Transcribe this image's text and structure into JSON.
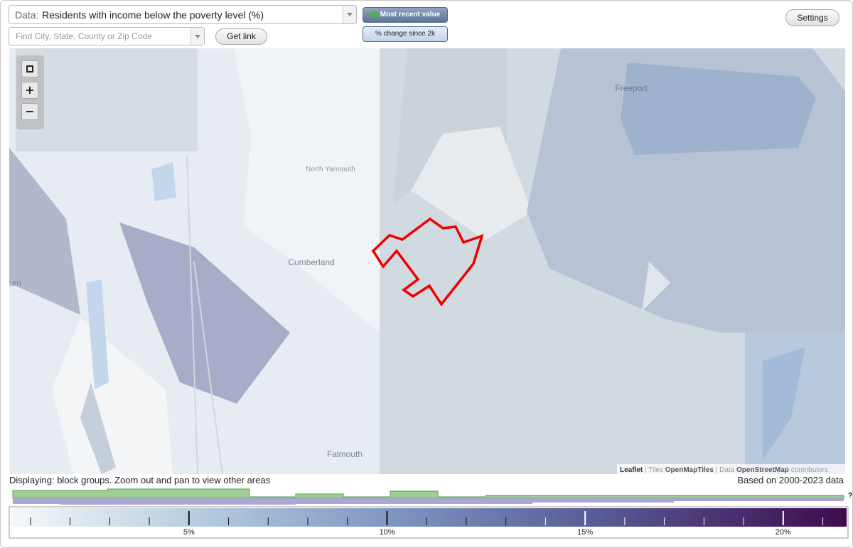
{
  "controls": {
    "data_label": "Data:",
    "data_value": "Residents with income below the poverty level (%)",
    "search_placeholder": "Find City, State, County or Zip Code",
    "get_link": "Get link",
    "most_recent": "Most recent value",
    "percent_change": "% change since 2k",
    "settings": "Settings"
  },
  "map": {
    "labels": [
      "Freeport",
      "North Yarmouth",
      "Cumberland",
      "Falmouth",
      "um"
    ],
    "zoom": [
      "+",
      "−"
    ],
    "attribution": {
      "leaflet": "Leaflet",
      "separator": "|",
      "tiles": "Tiles",
      "tiles_source": "OpenMapTiles",
      "data": "Data",
      "data_source": "OpenStreetMap",
      "contributors": "contributors"
    }
  },
  "footer": {
    "displaying": "Displaying: block groups. Zoom out and pan to view other areas",
    "based_on": "Based on 2000-2023 data",
    "help": "?"
  },
  "legend": {
    "range": [
      0.5,
      21.6
    ],
    "ticks": [
      {
        "value": 5,
        "label": "5%"
      },
      {
        "value": 10,
        "label": "10%"
      },
      {
        "value": 15,
        "label": "15%"
      },
      {
        "value": 20,
        "label": "20%"
      }
    ],
    "minor_ticks": [
      1,
      2,
      3,
      4,
      6,
      7,
      8,
      9,
      11,
      12,
      13,
      14,
      16,
      17,
      18,
      19,
      21
    ]
  }
}
